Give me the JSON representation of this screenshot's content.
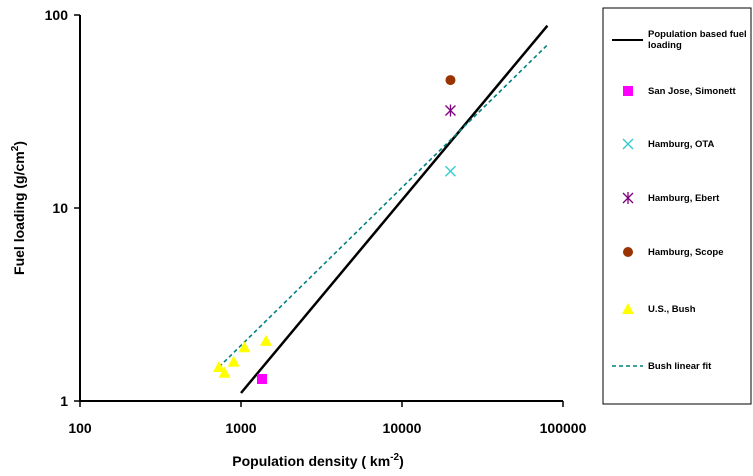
{
  "chart_data": {
    "type": "scatter",
    "title": "",
    "xlabel": "Population density ( km",
    "xlabel_sup": "-2",
    "xlabel_end": ")",
    "ylabel": "Fuel loading (g/cm",
    "ylabel_sup": "2",
    "ylabel_end": ")",
    "x_scale": "log",
    "y_scale": "log",
    "xlim": [
      100,
      100000
    ],
    "ylim": [
      1,
      100
    ],
    "x_ticks": [
      "100",
      "1000",
      "10000",
      "100000"
    ],
    "y_ticks": [
      "1",
      "10",
      "100"
    ],
    "grid": false,
    "legend_position": "right",
    "series": [
      {
        "name": "Population based fuel loading",
        "kind": "line",
        "color": "#000000",
        "x": [
          1000,
          80000
        ],
        "y": [
          1.1,
          88
        ]
      },
      {
        "name": "San Jose, Simonett",
        "kind": "marker",
        "marker": "square",
        "color": "#ff00ff",
        "x": [
          1350
        ],
        "y": [
          1.3
        ]
      },
      {
        "name": "Hamburg, OTA",
        "kind": "marker",
        "marker": "x",
        "color": "#33cccc",
        "x": [
          20000
        ],
        "y": [
          15.5
        ]
      },
      {
        "name": "Hamburg, Ebert",
        "kind": "marker",
        "marker": "asterisk",
        "color": "#800080",
        "x": [
          20000
        ],
        "y": [
          32
        ]
      },
      {
        "name": "Hamburg, Scope",
        "kind": "marker",
        "marker": "circle",
        "color": "#993300",
        "x": [
          20000
        ],
        "y": [
          46
        ]
      },
      {
        "name": "U.S., Bush",
        "kind": "marker",
        "marker": "triangle",
        "color": "#ffff00",
        "x": [
          730,
          790,
          900,
          1050,
          1430
        ],
        "y": [
          1.5,
          1.4,
          1.6,
          1.9,
          2.05
        ]
      },
      {
        "name": "Bush linear fit",
        "kind": "dashed",
        "color": "#008080",
        "x": [
          730,
          80000
        ],
        "y": [
          1.5,
          70
        ]
      }
    ]
  }
}
